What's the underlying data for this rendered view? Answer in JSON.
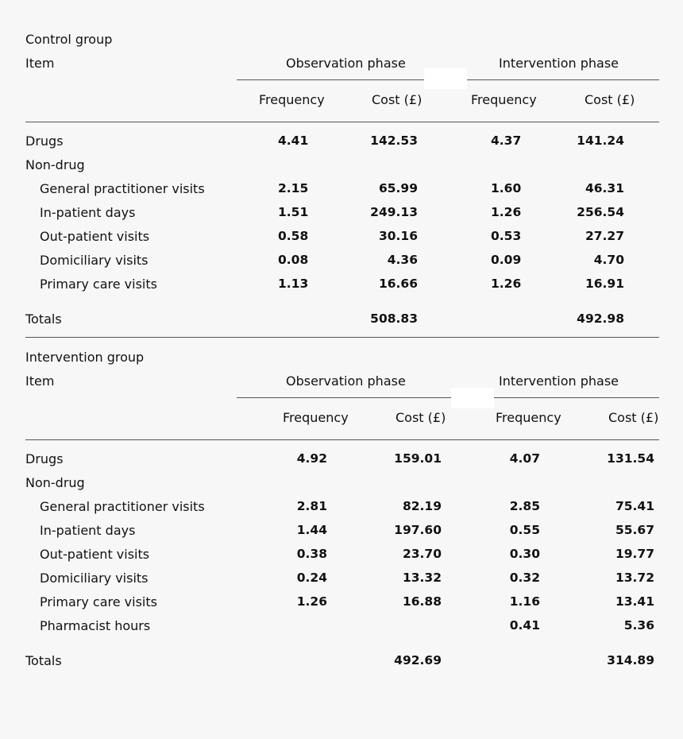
{
  "control": {
    "title": "Control group",
    "item_header": "Item",
    "obs_phase": "Observation phase",
    "int_phase": "Intervention phase",
    "col_freq": "Frequency",
    "col_cost": "Cost (£)",
    "rows": [
      {
        "label": "Drugs",
        "of": "4.41",
        "oc": "142.53",
        "if": "4.37",
        "ic": "141.24"
      },
      {
        "label": "Non-drug",
        "of": "",
        "oc": "",
        "if": "",
        "ic": ""
      },
      {
        "label": "General practitioner visits",
        "of": "2.15",
        "oc": "65.99",
        "if": "1.60",
        "ic": "46.31"
      },
      {
        "label": "In-patient days",
        "of": "1.51",
        "oc": "249.13",
        "if": "1.26",
        "ic": "256.54"
      },
      {
        "label": "Out-patient visits",
        "of": "0.58",
        "oc": "30.16",
        "if": "0.53",
        "ic": "27.27"
      },
      {
        "label": "Domiciliary visits",
        "of": "0.08",
        "oc": "4.36",
        "if": "0.09",
        "ic": "4.70"
      },
      {
        "label": "Primary care visits",
        "of": "1.13",
        "oc": "16.66",
        "if": "1.26",
        "ic": "16.91"
      }
    ],
    "totals_label": "Totals",
    "totals_obs": "508.83",
    "totals_int": "492.98"
  },
  "intervention": {
    "title": "Intervention group",
    "item_header": "Item",
    "obs_phase": "Observation phase",
    "int_phase": "Intervention phase",
    "col_freq": "Frequency",
    "col_cost": "Cost (£)",
    "rows": [
      {
        "label": "Drugs",
        "of": "4.92",
        "oc": "159.01",
        "if": "4.07",
        "ic": "131.54"
      },
      {
        "label": "Non-drug",
        "of": "",
        "oc": "",
        "if": "",
        "ic": ""
      },
      {
        "label": "General practitioner visits",
        "of": "2.81",
        "oc": "82.19",
        "if": "2.85",
        "ic": "75.41"
      },
      {
        "label": "In-patient days",
        "of": "1.44",
        "oc": "197.60",
        "if": "0.55",
        "ic": "55.67"
      },
      {
        "label": "Out-patient visits",
        "of": "0.38",
        "oc": "23.70",
        "if": "0.30",
        "ic": "19.77"
      },
      {
        "label": "Domiciliary visits",
        "of": "0.24",
        "oc": "13.32",
        "if": "0.32",
        "ic": "13.72"
      },
      {
        "label": "Primary care visits",
        "of": "1.26",
        "oc": "16.88",
        "if": "1.16",
        "ic": "13.41"
      },
      {
        "label": "Pharmacist hours",
        "of": "",
        "oc": "",
        "if": "0.41",
        "ic": "5.36"
      }
    ],
    "totals_label": "Totals",
    "totals_obs": "492.69",
    "totals_int": "314.89"
  }
}
